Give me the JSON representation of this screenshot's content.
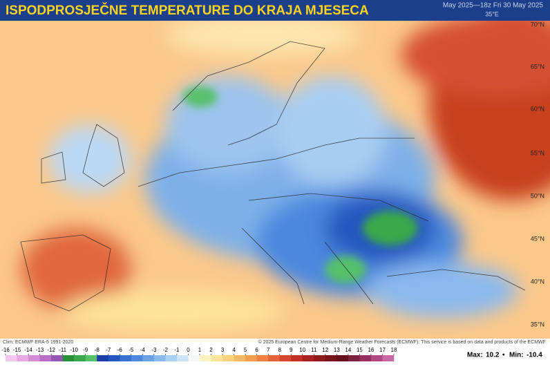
{
  "header": {
    "title": "ISPODPROSJEČNE TEMPERATURE DO KRAJA MJESECA",
    "valid_time": "May 2025—18z Fri 30 May 2025",
    "lon_label": "35°E"
  },
  "map": {
    "lat_labels": [
      "70°N",
      "65°N",
      "60°N",
      "55°N",
      "50°N",
      "45°N",
      "40°N",
      "35°N"
    ]
  },
  "footer": {
    "clim": "Clim: ECMWF ERA-5 1991-2020",
    "copyright": "© 2025 European Centre for Medium-Range Weather Forecasts (ECMWF). This service is based on data and products of the ECMWF",
    "max_label": "Max:",
    "max": 10.2,
    "separator": "•",
    "min_label": "Min:",
    "min": -10.4
  },
  "colorbar": {
    "ticks": [
      -16,
      -15,
      -14,
      -13,
      -12,
      -11,
      -10,
      -9,
      -8,
      -7,
      -6,
      -5,
      -4,
      -3,
      -2,
      -1,
      0,
      1,
      2,
      3,
      4,
      5,
      6,
      7,
      8,
      9,
      10,
      11,
      12,
      13,
      14,
      15,
      16,
      17,
      18
    ],
    "colors": [
      "#f3c8ee",
      "#e8a8e4",
      "#d68ad8",
      "#b86ec8",
      "#9656b4",
      "#2a8f3a",
      "#3aa84a",
      "#56c06a",
      "#1a3fa8",
      "#2657c0",
      "#3570d2",
      "#4c88de",
      "#6aa2e6",
      "#8ab9ee",
      "#aacff4",
      "#cde3f8",
      "#f4f6f8",
      "#fdf3c0",
      "#fde49a",
      "#fdd07a",
      "#fbb862",
      "#f79d50",
      "#f08044",
      "#e66238",
      "#d6462c",
      "#c03024",
      "#a8221e",
      "#901a1c",
      "#78141c",
      "#64101c",
      "#7a2040",
      "#963060",
      "#b04880",
      "#c868a0"
    ]
  }
}
